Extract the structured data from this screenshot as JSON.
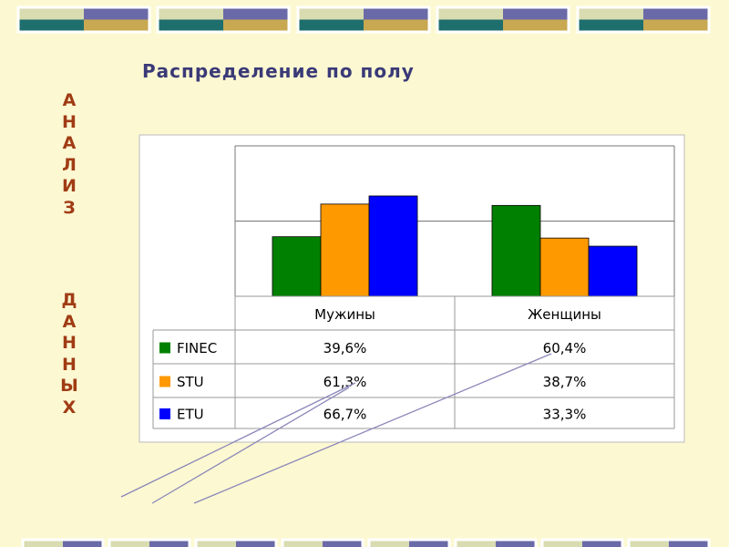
{
  "chart_data": {
    "type": "bar",
    "title": "Распределение по полу",
    "side_title": [
      "АНАЛИЗ",
      "ДАННЫХ"
    ],
    "categories": [
      "Мужины",
      "Женщины"
    ],
    "series": [
      {
        "name": "FINEC",
        "color": "#008000",
        "values": [
          39.6,
          60.4
        ],
        "value_labels": [
          "39,6%",
          "60,4%"
        ]
      },
      {
        "name": "STU",
        "color": "#ff9900",
        "values": [
          61.3,
          38.7
        ],
        "value_labels": [
          "61,3%",
          "38,7%"
        ]
      },
      {
        "name": "ETU",
        "color": "#0000ff",
        "values": [
          66.7,
          33.3
        ],
        "value_labels": [
          "66,7%",
          "33,3%"
        ]
      }
    ],
    "ylim": [
      0,
      100
    ],
    "yticks": [
      0,
      50,
      100
    ],
    "ytick_labels": false,
    "grid": true,
    "data_table": true
  }
}
